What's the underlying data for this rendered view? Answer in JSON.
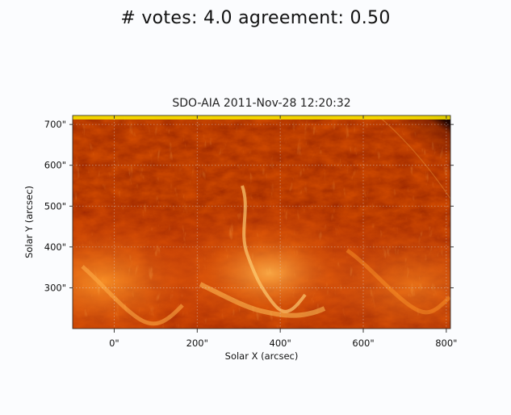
{
  "figure": {
    "suptitle": "# votes: 4.0 agreement: 0.50"
  },
  "image": {
    "title": "SDO-AIA   2011-Nov-28 12:20:32",
    "xlabel": "Solar X (arcsec)",
    "ylabel": "Solar Y (arcsec)",
    "x_range": [
      -100,
      810
    ],
    "y_range": [
      200,
      722
    ],
    "x_ticks": [
      {
        "value": 0,
        "label": "0\""
      },
      {
        "value": 200,
        "label": "200\""
      },
      {
        "value": 400,
        "label": "400\""
      },
      {
        "value": 600,
        "label": "600\""
      },
      {
        "value": 800,
        "label": "800\""
      }
    ],
    "y_ticks": [
      {
        "value": 300,
        "label": "300\""
      },
      {
        "value": 400,
        "label": "400\""
      },
      {
        "value": 500,
        "label": "500\""
      },
      {
        "value": 600,
        "label": "600\""
      },
      {
        "value": 700,
        "label": "700\""
      }
    ],
    "colors": {
      "dark": "#3a0503",
      "mid": "#a51a05",
      "bright": "#f07a14",
      "highlight": "#ffd27a",
      "grid": "#d8d8d8"
    }
  }
}
